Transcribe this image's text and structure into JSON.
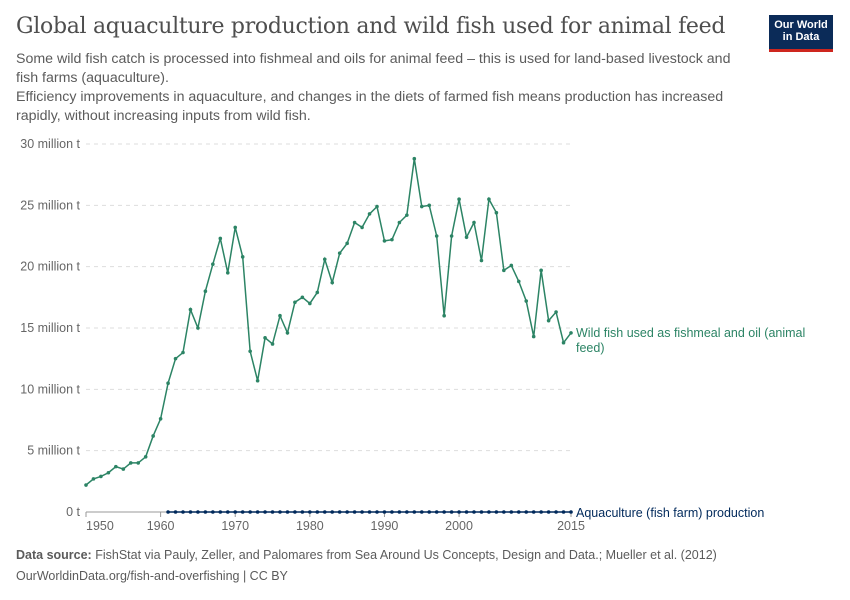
{
  "header": {
    "title": "Global aquaculture production and wild fish used for animal feed",
    "subtitle_1": "Some wild fish catch is processed into fishmeal and oils for animal feed – this is used for land-based livestock and fish farms (aquaculture).",
    "subtitle_2": "Efficiency improvements in aquaculture, and changes in the diets of farmed fish means production has increased rapidly, without increasing inputs from wild fish.",
    "logo_line1": "Our World",
    "logo_line2": "in Data"
  },
  "footer": {
    "source_label": "Data source:",
    "source_text": "FishStat via Pauly, Zeller, and Palomares from Sea Around Us Concepts, Design and Data.; Mueller et al. (2012)",
    "url_license": "OurWorldinData.org/fish-and-overfishing | CC BY"
  },
  "chart_data": {
    "type": "line",
    "title": "Global aquaculture production and wild fish used for animal feed",
    "xlim": [
      1950,
      2015
    ],
    "ylim": [
      0,
      30
    ],
    "x_ticks": [
      1950,
      1960,
      1970,
      1980,
      1990,
      2000,
      2015
    ],
    "y_ticks": [
      0,
      5,
      10,
      15,
      20,
      25,
      30
    ],
    "y_tick_labels": [
      "0 t",
      "5 million t",
      "10 million t",
      "15 million t",
      "20 million t",
      "25 million t",
      "30 million t"
    ],
    "grid": "horizontal dashed",
    "legend": "inline labels at line ends (right)",
    "series": [
      {
        "name": "Wild fish used as fishmeal and oil (animal feed)",
        "color": "#2c8465",
        "x_start": 1950,
        "values": [
          2.2,
          2.7,
          2.9,
          3.2,
          3.7,
          3.5,
          4.0,
          4.0,
          4.5,
          6.2,
          7.6,
          10.5,
          12.5,
          13.0,
          16.5,
          15.0,
          18.0,
          20.2,
          22.3,
          19.5,
          23.2,
          20.8,
          13.1,
          10.7,
          14.2,
          13.7,
          16.0,
          14.6,
          17.1,
          17.5,
          17.0,
          17.9,
          20.6,
          18.7,
          21.1,
          21.9,
          23.6,
          23.2,
          24.3,
          24.9,
          22.1,
          22.2,
          23.6,
          24.2,
          28.8,
          24.9,
          25.0,
          22.5,
          16.0,
          22.5,
          25.5,
          22.4,
          23.6,
          20.5,
          25.5,
          24.4,
          19.7,
          20.1,
          18.8,
          17.2,
          14.3,
          19.7,
          15.6,
          16.3,
          13.8,
          14.6
        ]
      },
      {
        "name": "Aquaculture (fish farm) production",
        "color": "#00295b",
        "x_start": 1961,
        "values": [
          0,
          0,
          0,
          0,
          0,
          0,
          0,
          0,
          0,
          0,
          0,
          0,
          0,
          0,
          0,
          0,
          0,
          0,
          0,
          0,
          0,
          0,
          0,
          0,
          0,
          0,
          0,
          0,
          0,
          0,
          0,
          0,
          0,
          0,
          0,
          0,
          0,
          0,
          0,
          0,
          0,
          0,
          0,
          0,
          0,
          0,
          0,
          0,
          0,
          0,
          0,
          0,
          0,
          0,
          0
        ]
      }
    ]
  }
}
